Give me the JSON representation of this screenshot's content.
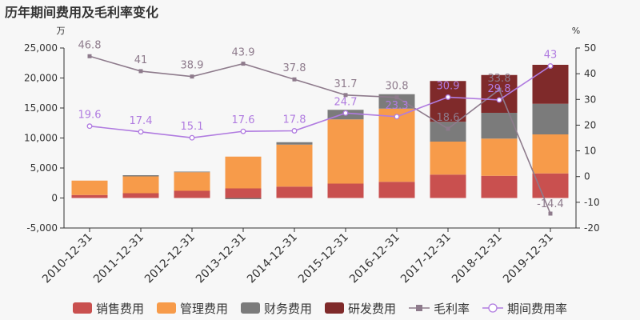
{
  "title": "历年期间费用及毛利率变化",
  "colors": {
    "sales": "#c9504f",
    "mgmt": "#f79b4a",
    "fin": "#7b7b7b",
    "rd": "#7f2a2a",
    "gross": "#8e7b8c",
    "period": "#b07be0"
  },
  "chart_data": {
    "type": "bar",
    "stacked": true,
    "categories": [
      "2010-12-31",
      "2011-12-31",
      "2012-12-31",
      "2013-12-31",
      "2014-12-31",
      "2015-12-31",
      "2016-12-31",
      "2017-12-31",
      "2018-12-31",
      "2019-12-31"
    ],
    "left_axis": {
      "unit": "万",
      "min": -5000,
      "max": 25000,
      "ticks": [
        -5000,
        0,
        5000,
        10000,
        15000,
        20000,
        25000
      ],
      "tick_labels": [
        "-5,000",
        "0",
        "5,000",
        "10,000",
        "15,000",
        "20,000",
        "25,000"
      ]
    },
    "right_axis": {
      "unit": "%",
      "min": -20,
      "max": 50,
      "ticks": [
        -20,
        -10,
        0,
        10,
        20,
        30,
        40,
        50
      ]
    },
    "series": [
      {
        "name": "销售费用",
        "color_key": "sales",
        "values": [
          500,
          800,
          1200,
          1600,
          1900,
          2400,
          2700,
          3900,
          3700,
          4100
        ]
      },
      {
        "name": "管理费用",
        "color_key": "mgmt",
        "values": [
          2400,
          2800,
          3100,
          5300,
          7000,
          10700,
          12200,
          5500,
          6200,
          6500
        ]
      },
      {
        "name": "财务费用",
        "color_key": "fin",
        "values": [
          0,
          200,
          100,
          -200,
          400,
          1600,
          2400,
          3300,
          4300,
          5100
        ]
      },
      {
        "name": "研发费用",
        "color_key": "rd",
        "values": [
          0,
          0,
          0,
          0,
          0,
          0,
          0,
          6800,
          6300,
          6500
        ]
      }
    ],
    "lines": [
      {
        "name": "毛利率",
        "color_key": "gross",
        "axis": "right",
        "marker": "square",
        "values": [
          46.8,
          41,
          38.9,
          43.9,
          37.8,
          31.7,
          30.8,
          18.6,
          33.8,
          -14.4
        ],
        "labels": [
          "46.8",
          "41",
          "38.9",
          "43.9",
          "37.8",
          "31.7",
          "30.8",
          "18.6",
          "33.8",
          "-14.4"
        ]
      },
      {
        "name": "期间费用率",
        "color_key": "period",
        "axis": "right",
        "marker": "circle",
        "values": [
          19.6,
          17.4,
          15.1,
          17.6,
          17.8,
          24.7,
          23.3,
          30.9,
          29.8,
          43
        ],
        "labels": [
          "19.6",
          "17.4",
          "15.1",
          "17.6",
          "17.8",
          "24.7",
          "23.3",
          "30.9",
          "29.8",
          "43"
        ]
      }
    ]
  }
}
